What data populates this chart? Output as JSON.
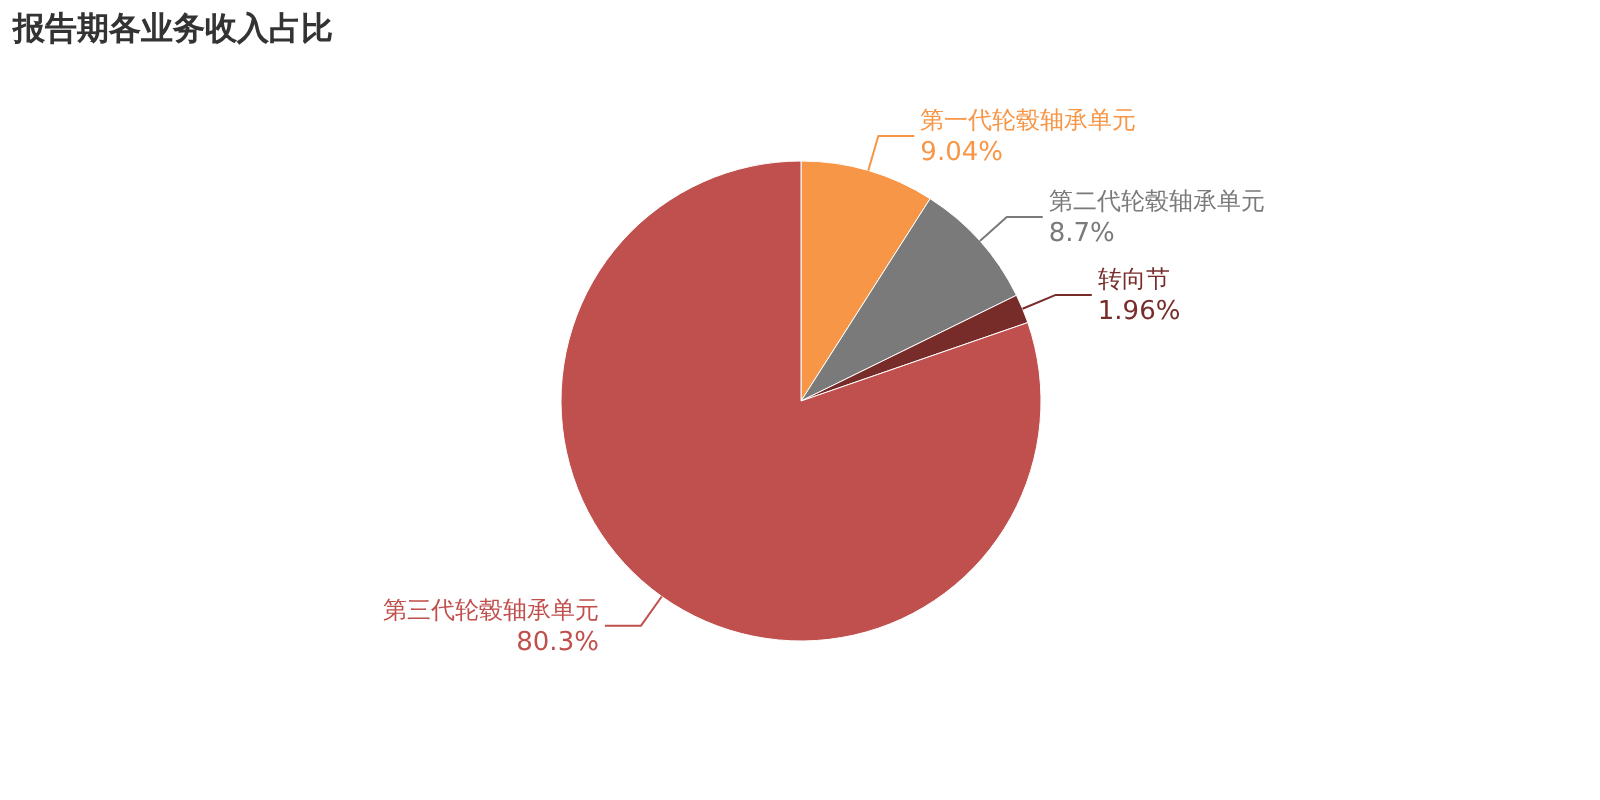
{
  "chart_data": {
    "type": "pie",
    "title": "报告期各业务收入占比",
    "categories": [
      "第一代轮毂轴承单元",
      "第二代轮毂轴承单元",
      "转向节",
      "第三代轮毂轴承单元"
    ],
    "values": [
      9.04,
      8.7,
      1.96,
      80.3
    ],
    "value_labels": [
      "9.04%",
      "8.7%",
      "1.96%",
      "80.3%"
    ],
    "colors": [
      "#f79646",
      "#7a7a7a",
      "#772c2a",
      "#c0504d"
    ]
  }
}
